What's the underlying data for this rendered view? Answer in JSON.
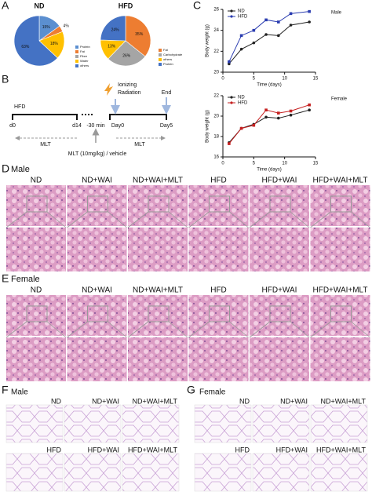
{
  "panel_labels": [
    "A",
    "B",
    "C",
    "D",
    "E",
    "F",
    "G"
  ],
  "chart_data": [
    {
      "type": "pie",
      "title": "ND",
      "categories": [
        "Protein",
        "Fat",
        "Fibre",
        "Water",
        "others"
      ],
      "values": [
        15,
        4,
        0,
        18,
        63
      ],
      "value_labels": [
        "15%",
        "4%",
        null,
        "18%",
        "63%"
      ],
      "colors": [
        "#5b8fd0",
        "#ed7d31",
        "#a5a5a5",
        "#ffc000",
        "#4472c4"
      ]
    },
    {
      "type": "pie",
      "title": "HFD",
      "categories": [
        "Fat",
        "Carbohydrate",
        "others",
        "Protein"
      ],
      "values": [
        35,
        26,
        13,
        24
      ],
      "value_labels": [
        "35%",
        "26%",
        "13%",
        "24%"
      ],
      "colors": [
        "#ed7d31",
        "#a5a5a5",
        "#ffc000",
        "#4472c4"
      ]
    },
    {
      "type": "line",
      "annotation": "Male",
      "x_label": "Time (days)",
      "y_label": "Body weight (g)",
      "x": [
        1,
        3,
        5,
        7,
        9,
        11,
        14
      ],
      "series": [
        {
          "name": "ND",
          "color": "#222222",
          "values": [
            20.8,
            22.2,
            22.8,
            23.6,
            23.5,
            24.5,
            24.8
          ]
        },
        {
          "name": "HFD",
          "color": "#2a3cb0",
          "values": [
            21.0,
            23.5,
            24.0,
            25.0,
            24.8,
            25.6,
            25.8
          ]
        }
      ],
      "xlim": [
        0,
        15
      ],
      "xticks": [
        0,
        5,
        10,
        15
      ],
      "ylim": [
        20,
        26
      ],
      "yticks": [
        20,
        22,
        24,
        26
      ]
    },
    {
      "type": "line",
      "annotation": "Female",
      "x_label": "Time (days)",
      "y_label": "Body weight (g)",
      "x": [
        1,
        3,
        5,
        7,
        9,
        11,
        14
      ],
      "series": [
        {
          "name": "ND",
          "color": "#222222",
          "values": [
            17.4,
            18.8,
            19.2,
            19.9,
            19.8,
            20.1,
            20.6
          ]
        },
        {
          "name": "HFD",
          "color": "#c62020",
          "values": [
            17.3,
            18.8,
            19.1,
            20.6,
            20.3,
            20.5,
            21.1
          ]
        }
      ],
      "xlim": [
        0,
        15
      ],
      "xticks": [
        0,
        5,
        10,
        15
      ],
      "ylim": [
        16,
        22
      ],
      "yticks": [
        16,
        18,
        20,
        22
      ]
    }
  ],
  "timeline": {
    "hfd": "HFD",
    "d0": "d0",
    "d14": "d14",
    "minus30": "-30 min",
    "day0": "Day0",
    "day5": "Day5",
    "radiation": [
      "Ionizing",
      "Radiation"
    ],
    "end": "End",
    "mlt_pre": "MLT",
    "mlt_post": "MLT",
    "mlt_dose": "MLT (10mg/kg) / vehicle"
  },
  "liver": [
    {
      "sex": "Male",
      "groups": [
        "ND",
        "ND+WAI",
        "ND+WAI+MLT",
        "HFD",
        "HFD+WAI",
        "HFD+WAI+MLT"
      ]
    },
    {
      "sex": "Female",
      "groups": [
        "ND",
        "ND+WAI",
        "ND+WAI+MLT",
        "HFD",
        "HFD+WAI",
        "HFD+WAI+MLT"
      ]
    }
  ],
  "adipose": [
    {
      "sex": "Male",
      "groups": [
        "ND",
        "ND+WAI",
        "ND+WAI+MLT",
        "HFD",
        "HFD+WAI",
        "HFD+WAI+MLT"
      ]
    },
    {
      "sex": "Female",
      "groups": [
        "ND",
        "ND+WAI",
        "ND+WAI+MLT",
        "HFD",
        "HFD+WAI",
        "HFD+WAI+MLT"
      ]
    }
  ]
}
